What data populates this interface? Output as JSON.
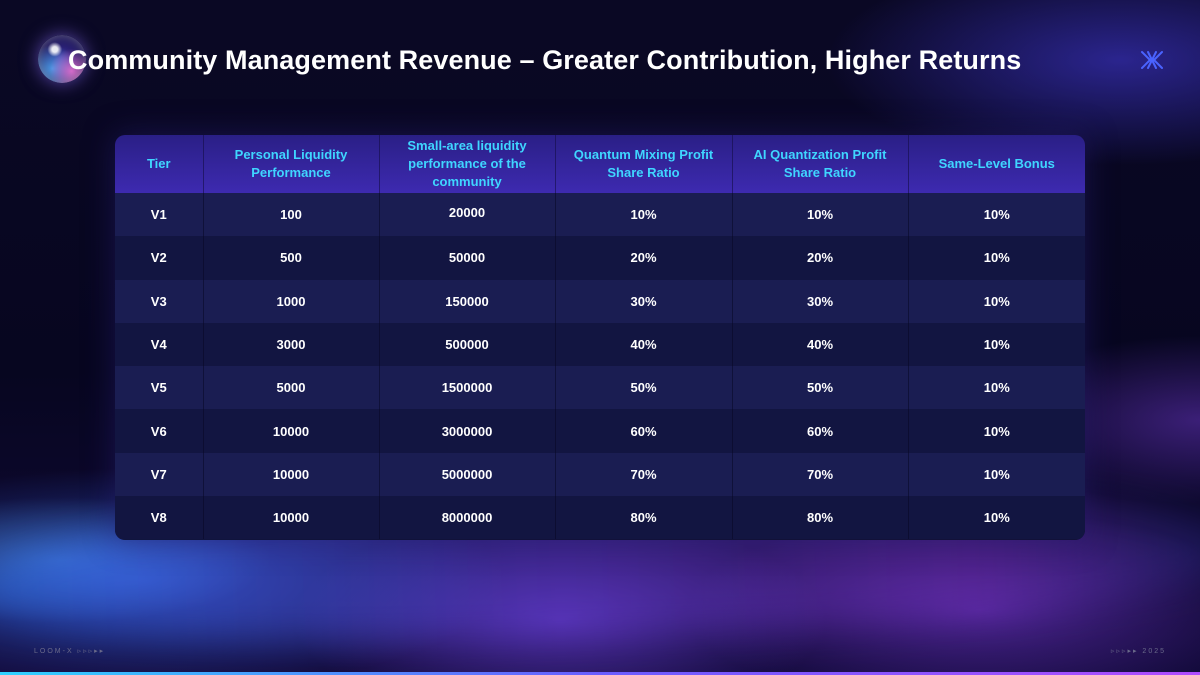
{
  "header": {
    "title": "Community Management Revenue – Greater Contribution, Higher Returns"
  },
  "table": {
    "columns": [
      "Tier",
      "Personal Liquidity Performance",
      "Small-area  liquidity performance of the community",
      "Quantum Mixing Profit Share Ratio",
      "AI Quantization Profit Share Ratio",
      "Same-Level Bonus"
    ],
    "rows": [
      [
        "V1",
        "100",
        "20000",
        "10%",
        "10%",
        "10%"
      ],
      [
        "V2",
        "500",
        "50000",
        "20%",
        "20%",
        "10%"
      ],
      [
        "V3",
        "1000",
        "150000",
        "30%",
        "30%",
        "10%"
      ],
      [
        "V4",
        "3000",
        "500000",
        "40%",
        "40%",
        "10%"
      ],
      [
        "V5",
        "5000",
        "1500000",
        "50%",
        "50%",
        "10%"
      ],
      [
        "V6",
        "10000",
        "3000000",
        "60%",
        "60%",
        "10%"
      ],
      [
        "V7",
        "10000",
        "5000000",
        "70%",
        "70%",
        "10%"
      ],
      [
        "V8",
        "10000",
        "8000000",
        "80%",
        "80%",
        "10%"
      ]
    ]
  },
  "footer": {
    "left": "LOOM-X ▹▹▹▸▸",
    "right": "▹▹▹▸▸ 2025"
  },
  "icons": {
    "orb": "orb-icon",
    "logo": "x-logo-icon"
  },
  "colors": {
    "header_text": "#3fd6ff",
    "accent": "#3d2ab0"
  }
}
